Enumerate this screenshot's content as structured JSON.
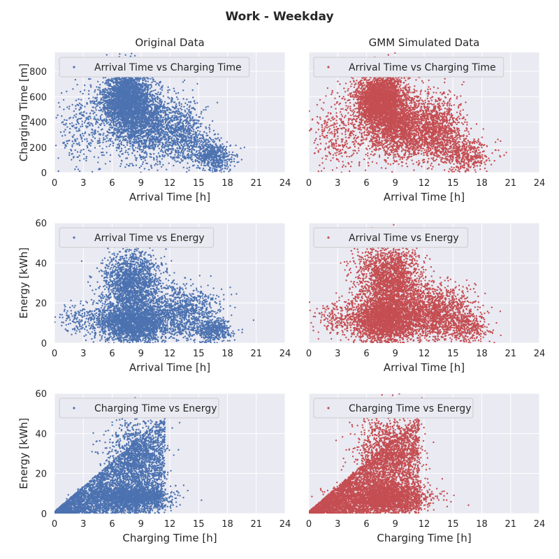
{
  "title": "Work - Weekday",
  "col_titles": [
    "Original Data",
    "GMM Simulated Data"
  ],
  "colors": {
    "original": "#4c72b0",
    "simulated": "#c44e52",
    "panel_bg": "#eaeaf2",
    "grid": "#ffffff",
    "text": "#262626"
  },
  "chart_data": [
    {
      "type": "scatter",
      "row": 0,
      "col": 0,
      "legend": "Arrival Time vs Charging Time",
      "xlabel": "Arrival Time [h]",
      "ylabel": "Charging Time [m]",
      "xlim": [
        0,
        24
      ],
      "ylim": [
        0,
        950
      ],
      "xticks": [
        0,
        3,
        6,
        9,
        12,
        15,
        18,
        21,
        24
      ],
      "yticks": [
        0,
        200,
        400,
        600,
        800
      ],
      "grid": true,
      "legend_loc": "top-left",
      "color": "original",
      "point_count": 6000,
      "clusters": [
        {
          "cx": 7.5,
          "cy": 580,
          "sx": 1.3,
          "sy": 120,
          "w": 0.45
        },
        {
          "cx": 9.5,
          "cy": 380,
          "sx": 2.0,
          "sy": 130,
          "w": 0.3
        },
        {
          "cx": 13.5,
          "cy": 300,
          "sx": 1.2,
          "sy": 120,
          "w": 0.1
        },
        {
          "cx": 16.5,
          "cy": 130,
          "sx": 1.0,
          "sy": 60,
          "w": 0.1
        },
        {
          "cx": 3.0,
          "cy": 350,
          "sx": 1.5,
          "sy": 150,
          "w": 0.05
        }
      ]
    },
    {
      "type": "scatter",
      "row": 0,
      "col": 1,
      "legend": "Arrival Time vs Charging Time",
      "xlabel": "Arrival Time [h]",
      "ylabel": "",
      "xlim": [
        0,
        24
      ],
      "ylim": [
        0,
        950
      ],
      "xticks": [
        0,
        3,
        6,
        9,
        12,
        15,
        18,
        21,
        24
      ],
      "yticks": [
        0,
        200,
        400,
        600,
        800
      ],
      "grid": true,
      "legend_loc": "top-left",
      "color": "simulated",
      "point_count": 7000,
      "clusters": [
        {
          "cx": 7.5,
          "cy": 570,
          "sx": 1.3,
          "sy": 110,
          "w": 0.45
        },
        {
          "cx": 9.5,
          "cy": 360,
          "sx": 2.0,
          "sy": 130,
          "w": 0.3
        },
        {
          "cx": 13.5,
          "cy": 350,
          "sx": 1.3,
          "sy": 120,
          "w": 0.12
        },
        {
          "cx": 16.0,
          "cy": 150,
          "sx": 1.4,
          "sy": 70,
          "w": 0.08
        },
        {
          "cx": 3.0,
          "cy": 300,
          "sx": 1.5,
          "sy": 150,
          "w": 0.05
        }
      ]
    },
    {
      "type": "scatter",
      "row": 1,
      "col": 0,
      "legend": "Arrival Time vs Energy",
      "xlabel": "Arrival Time [h]",
      "ylabel": "Energy [kWh]",
      "xlim": [
        0,
        24
      ],
      "ylim": [
        0,
        60
      ],
      "xticks": [
        0,
        3,
        6,
        9,
        12,
        15,
        18,
        21,
        24
      ],
      "yticks": [
        0,
        20,
        40,
        60
      ],
      "grid": true,
      "legend_loc": "top-left",
      "color": "original",
      "point_count": 6000,
      "clusters": [
        {
          "cx": 8.0,
          "cy": 10,
          "sx": 1.8,
          "sy": 5,
          "w": 0.4
        },
        {
          "cx": 8.0,
          "cy": 30,
          "sx": 1.5,
          "sy": 8,
          "w": 0.3
        },
        {
          "cx": 13.0,
          "cy": 15,
          "sx": 2.0,
          "sy": 7,
          "w": 0.2
        },
        {
          "cx": 16.5,
          "cy": 6,
          "sx": 1.0,
          "sy": 3,
          "w": 0.07
        },
        {
          "cx": 3.0,
          "cy": 12,
          "sx": 1.5,
          "sy": 4,
          "w": 0.03
        }
      ]
    },
    {
      "type": "scatter",
      "row": 1,
      "col": 1,
      "legend": "Arrival Time vs Energy",
      "xlabel": "Arrival Time [h]",
      "ylabel": "",
      "xlim": [
        0,
        24
      ],
      "ylim": [
        0,
        60
      ],
      "xticks": [
        0,
        3,
        6,
        9,
        12,
        15,
        18,
        21,
        24
      ],
      "yticks": [
        0,
        20,
        40,
        60
      ],
      "grid": true,
      "legend_loc": "top-left",
      "color": "simulated",
      "point_count": 7000,
      "clusters": [
        {
          "cx": 8.0,
          "cy": 12,
          "sx": 1.8,
          "sy": 6,
          "w": 0.4
        },
        {
          "cx": 8.5,
          "cy": 32,
          "sx": 1.6,
          "sy": 9,
          "w": 0.3
        },
        {
          "cx": 13.0,
          "cy": 15,
          "sx": 2.0,
          "sy": 7,
          "w": 0.22
        },
        {
          "cx": 16.5,
          "cy": 8,
          "sx": 1.1,
          "sy": 4,
          "w": 0.05
        },
        {
          "cx": 3.0,
          "cy": 12,
          "sx": 1.5,
          "sy": 4,
          "w": 0.03
        }
      ]
    },
    {
      "type": "scatter",
      "row": 2,
      "col": 0,
      "legend": "Charging Time vs Energy",
      "xlabel": "Charging Time [h]",
      "ylabel": "Energy [kWh]",
      "xlim": [
        0,
        24
      ],
      "ylim": [
        0,
        60
      ],
      "xticks": [
        0,
        3,
        6,
        9,
        12,
        15,
        18,
        21,
        24
      ],
      "yticks": [
        0,
        20,
        40,
        60
      ],
      "grid": true,
      "legend_loc": "top-left",
      "color": "original",
      "point_count": 6000,
      "clusters": [
        {
          "type": "tri",
          "xmax": 11.5,
          "ymax": 48,
          "w": 0.6
        },
        {
          "cx": 8.0,
          "cy": 8,
          "sx": 2.0,
          "sy": 3,
          "w": 0.25
        },
        {
          "cx": 8.5,
          "cy": 30,
          "sx": 1.5,
          "sy": 9,
          "w": 0.15
        }
      ]
    },
    {
      "type": "scatter",
      "row": 2,
      "col": 1,
      "legend": "Charging Time vs Energy",
      "xlabel": "Charging Time [h]",
      "ylabel": "",
      "xlim": [
        0,
        24
      ],
      "ylim": [
        0,
        60
      ],
      "xticks": [
        0,
        3,
        6,
        9,
        12,
        15,
        18,
        21,
        24
      ],
      "yticks": [
        0,
        20,
        40,
        60
      ],
      "grid": true,
      "legend_loc": "top-left",
      "color": "simulated",
      "point_count": 7000,
      "clusters": [
        {
          "type": "tri",
          "xmax": 11.5,
          "ymax": 48,
          "w": 0.6
        },
        {
          "cx": 8.0,
          "cy": 8,
          "sx": 2.2,
          "sy": 3.5,
          "w": 0.25
        },
        {
          "cx": 8.0,
          "cy": 32,
          "sx": 1.6,
          "sy": 9,
          "w": 0.15
        }
      ]
    }
  ]
}
